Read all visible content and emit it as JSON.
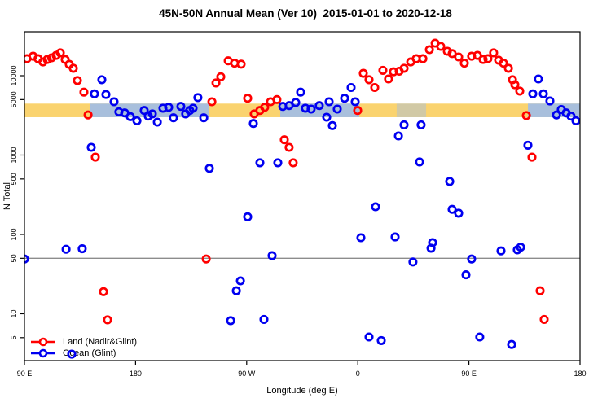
{
  "title": "45N-50N Annual Mean (Ver 10)  2015-01-01 to 2020-12-18",
  "axes": {
    "y_label": "N Total",
    "x_label": "Longitude (deg E)",
    "y_ticks": [
      {
        "value": 10000,
        "label": "10000"
      },
      {
        "value": 5000,
        "label": "5000"
      },
      {
        "value": 1000,
        "label": "1000"
      },
      {
        "value": 500,
        "label": "500"
      },
      {
        "value": 100,
        "label": "100"
      },
      {
        "value": 50,
        "label": "50"
      },
      {
        "value": 10,
        "label": "10"
      },
      {
        "value": 5,
        "label": "5"
      }
    ],
    "x_ticks": [
      {
        "value": 90,
        "label": "90 E"
      },
      {
        "value": 180,
        "label": "180"
      },
      {
        "value": 270,
        "label": "90 W"
      },
      {
        "value": 360,
        "label": "0"
      },
      {
        "value": 450,
        "label": "90 E"
      },
      {
        "value": 540,
        "label": "180"
      }
    ]
  },
  "legend": {
    "items": [
      {
        "label": "Land (Nadir&Glint)",
        "color": "#FF0000"
      },
      {
        "label": "Ocean (Glint)",
        "color": "#0000F0"
      }
    ]
  },
  "colors": {
    "land": "#FF0000",
    "ocean": "#0000F0",
    "yellow_band": "#FAD36F",
    "blue_band": "#A8BFDC",
    "hline": "#8C8C8C",
    "frame": "#000000"
  },
  "chart_data": {
    "type": "scatter",
    "title": "45N-50N Annual Mean (Ver 10)  2015-01-01 to 2020-12-18",
    "xlabel": "Longitude (deg E)",
    "ylabel": "N Total",
    "x_axis_note": "longitude axis runs 90E eastward through 180, 90W, 0, 90E to 180 (units deg, 90 to 540)",
    "xlim": [
      90,
      540
    ],
    "ylim": [
      2.57,
      35800
    ],
    "y_scale": "log",
    "grid": false,
    "legend_position": "bottom-left",
    "hline": {
      "y": 50
    },
    "bands": {
      "y_range": [
        3000,
        4450
      ],
      "note": "full-width yellow reference band with light-blue overlay segments",
      "blue_segments": [
        {
          "x": [
            142.8,
            239.8
          ],
          "opacity": 1
        },
        {
          "x": [
            297.2,
            361.3
          ],
          "opacity": 1
        },
        {
          "x": [
            391.5,
            415.3
          ],
          "opacity": 0.5
        },
        {
          "x": [
            497.8,
            540.0
          ],
          "opacity": 1
        }
      ]
    },
    "series": [
      {
        "name": "Land (Nadir&Glint)",
        "color_key": "land",
        "points": [
          [
            92,
            16400
          ],
          [
            97,
            17600
          ],
          [
            101,
            16400
          ],
          [
            105,
            14900
          ],
          [
            108.5,
            16000
          ],
          [
            112,
            16800
          ],
          [
            115.7,
            18000
          ],
          [
            119,
            19400
          ],
          [
            123,
            16000
          ],
          [
            126.3,
            13900
          ],
          [
            129.6,
            12400
          ],
          [
            132.9,
            8700
          ],
          [
            138.2,
            6200
          ],
          [
            141.5,
            3200
          ],
          [
            147.4,
            940
          ],
          [
            154,
            19
          ],
          [
            157.3,
            8.4
          ],
          [
            237.2,
            49
          ],
          [
            241.8,
            4700
          ],
          [
            245.1,
            8100
          ],
          [
            249,
            9700
          ],
          [
            255,
            15400
          ],
          [
            260.2,
            14400
          ],
          [
            265.5,
            14000
          ],
          [
            270.8,
            5200
          ],
          [
            276.1,
            3300
          ],
          [
            280.7,
            3650
          ],
          [
            284.6,
            4000
          ],
          [
            289.3,
            4700
          ],
          [
            294.5,
            5000
          ],
          [
            300.5,
            1560
          ],
          [
            304.4,
            1250
          ],
          [
            307.7,
            800
          ],
          [
            359.9,
            3650
          ],
          [
            364.5,
            10700
          ],
          [
            369.1,
            8900
          ],
          [
            373.7,
            7100
          ],
          [
            380.3,
            11700
          ],
          [
            384.9,
            9100
          ],
          [
            388.9,
            11200
          ],
          [
            393.5,
            11400
          ],
          [
            397.5,
            12400
          ],
          [
            402.8,
            14900
          ],
          [
            407.4,
            16400
          ],
          [
            412.7,
            16400
          ],
          [
            418,
            21300
          ],
          [
            422.6,
            25700
          ],
          [
            427.2,
            23400
          ],
          [
            432.5,
            20300
          ],
          [
            436.4,
            19000
          ],
          [
            441.7,
            17200
          ],
          [
            446.3,
            14400
          ],
          [
            452.2,
            17600
          ],
          [
            456.9,
            18000
          ],
          [
            461.5,
            16000
          ],
          [
            465.4,
            16400
          ],
          [
            470,
            19400
          ],
          [
            474,
            15700
          ],
          [
            478,
            14400
          ],
          [
            482,
            12400
          ],
          [
            485.3,
            8900
          ],
          [
            487.2,
            7700
          ],
          [
            491.2,
            6400
          ],
          [
            496.5,
            3150
          ],
          [
            501.1,
            940
          ],
          [
            507.7,
            19.5
          ],
          [
            511,
            8.5
          ]
        ]
      },
      {
        "name": "Ocean (Glint)",
        "color_key": "ocean",
        "points": [
          [
            90,
            49
          ],
          [
            123.7,
            65
          ],
          [
            128.3,
            3.1
          ],
          [
            136.8,
            66
          ],
          [
            144.1,
            1250
          ],
          [
            146.7,
            5900
          ],
          [
            152.7,
            8900
          ],
          [
            156,
            5800
          ],
          [
            162.6,
            4700
          ],
          [
            166.5,
            3500
          ],
          [
            171.2,
            3400
          ],
          [
            175.8,
            3050
          ],
          [
            181.1,
            2700
          ],
          [
            187,
            3650
          ],
          [
            190.3,
            3100
          ],
          [
            193.6,
            3300
          ],
          [
            197.6,
            2600
          ],
          [
            202.2,
            3900
          ],
          [
            206.8,
            4000
          ],
          [
            210.7,
            2950
          ],
          [
            216.7,
            4100
          ],
          [
            220.6,
            3300
          ],
          [
            223.9,
            3650
          ],
          [
            226.6,
            3900
          ],
          [
            230.5,
            5300
          ],
          [
            235.2,
            2950
          ],
          [
            239.8,
            680
          ],
          [
            257,
            8.2
          ],
          [
            261.6,
            19.5
          ],
          [
            264.9,
            26
          ],
          [
            270.8,
            167
          ],
          [
            275.4,
            2500
          ],
          [
            280.7,
            800
          ],
          [
            284,
            8.5
          ],
          [
            290.6,
            54
          ],
          [
            295.2,
            800
          ],
          [
            299.2,
            4100
          ],
          [
            304.4,
            4200
          ],
          [
            309.7,
            4600
          ],
          [
            313.7,
            6200
          ],
          [
            317.6,
            3900
          ],
          [
            322.2,
            3800
          ],
          [
            328.8,
            4200
          ],
          [
            334.8,
            3000
          ],
          [
            336.8,
            4700
          ],
          [
            339.4,
            2350
          ],
          [
            343.4,
            3800
          ],
          [
            349.3,
            5200
          ],
          [
            354.6,
            7100
          ],
          [
            357.9,
            4700
          ],
          [
            362.5,
            91
          ],
          [
            369.1,
            5.1
          ],
          [
            374.4,
            223
          ],
          [
            379,
            4.6
          ],
          [
            390.2,
            93
          ],
          [
            392.9,
            1740
          ],
          [
            397.5,
            2400
          ],
          [
            404.7,
            45
          ],
          [
            410,
            820
          ],
          [
            411.3,
            2400
          ],
          [
            419.3,
            67
          ],
          [
            420.6,
            79
          ],
          [
            434.4,
            465
          ],
          [
            436.4,
            207
          ],
          [
            441.7,
            185
          ],
          [
            447.6,
            31
          ],
          [
            452.2,
            49
          ],
          [
            458.8,
            5.1
          ],
          [
            476,
            62
          ],
          [
            484.6,
            4.1
          ],
          [
            489.2,
            64
          ],
          [
            491.8,
            69
          ],
          [
            497.8,
            1330
          ],
          [
            501.7,
            5900
          ],
          [
            506.3,
            9100
          ],
          [
            510.3,
            5900
          ],
          [
            515.6,
            4800
          ],
          [
            520.9,
            3200
          ],
          [
            524.8,
            3750
          ],
          [
            528.8,
            3400
          ],
          [
            532.7,
            3100
          ],
          [
            536.7,
            2700
          ]
        ]
      }
    ]
  }
}
